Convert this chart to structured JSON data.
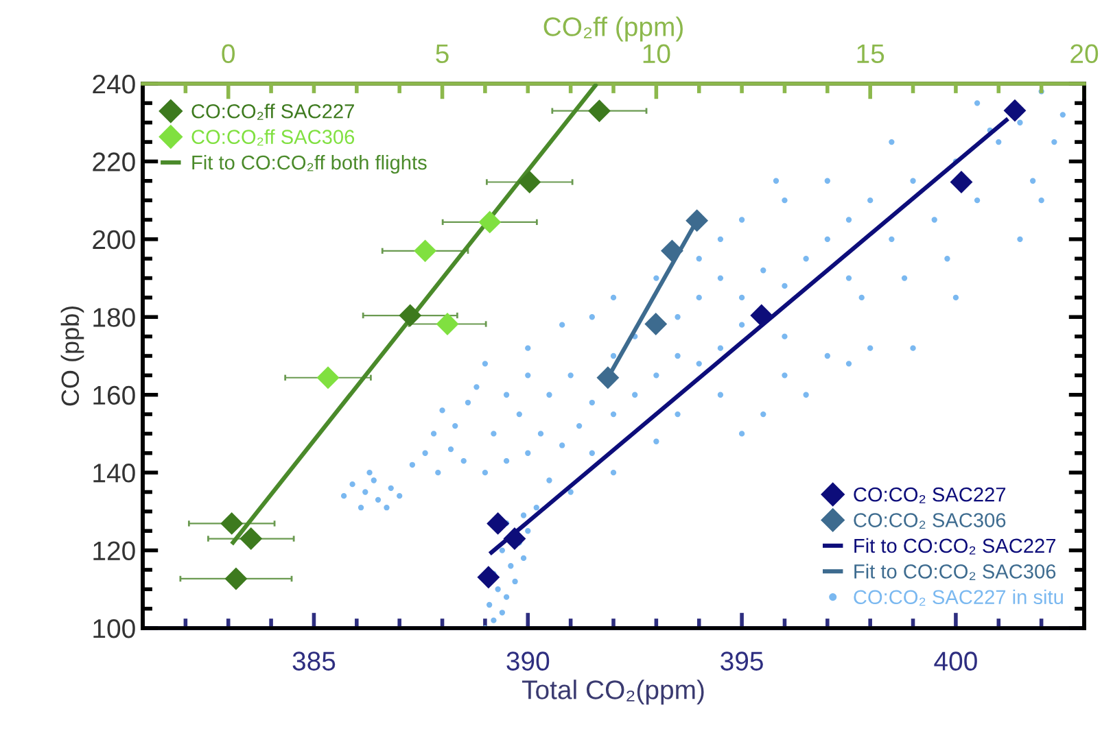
{
  "chart_data": {
    "type": "scatter",
    "xlabel": "Total CO₂(ppm)",
    "ylabel": "CO (ppb)",
    "x2label": "CO₂ff (ppm)",
    "xlim": [
      381,
      403
    ],
    "xticks": [
      {
        "value": 381,
        "label": null
      },
      {
        "value": 382,
        "label": null
      },
      {
        "value": 383,
        "label": null
      },
      {
        "value": 384,
        "label": null
      },
      385,
      {
        "value": 386,
        "label": null
      },
      {
        "value": 387,
        "label": null
      },
      {
        "value": 388,
        "label": null
      },
      {
        "value": 389,
        "label": null
      },
      390,
      {
        "value": 391,
        "label": null
      },
      {
        "value": 392,
        "label": null
      },
      {
        "value": 393,
        "label": null
      },
      {
        "value": 394,
        "label": null
      },
      395,
      {
        "value": 396,
        "label": null
      },
      {
        "value": 397,
        "label": null
      },
      {
        "value": 398,
        "label": null
      },
      {
        "value": 399,
        "label": null
      },
      400,
      {
        "value": 401,
        "label": null
      },
      {
        "value": 402,
        "label": null
      }
    ],
    "x2lim": [
      -2,
      20
    ],
    "x2ticks": [
      {
        "value": -1,
        "label": null
      },
      0,
      {
        "value": 1,
        "label": null
      },
      {
        "value": 2,
        "label": null
      },
      {
        "value": 3,
        "label": null
      },
      {
        "value": 4,
        "label": null
      },
      5,
      {
        "value": 6,
        "label": null
      },
      {
        "value": 7,
        "label": null
      },
      {
        "value": 8,
        "label": null
      },
      {
        "value": 9,
        "label": null
      },
      10,
      {
        "value": 11,
        "label": null
      },
      {
        "value": 12,
        "label": null
      },
      {
        "value": 13,
        "label": null
      },
      {
        "value": 14,
        "label": null
      },
      15,
      {
        "value": 16,
        "label": null
      },
      {
        "value": 17,
        "label": null
      },
      {
        "value": 18,
        "label": null
      },
      {
        "value": 19,
        "label": null
      },
      20
    ],
    "ylim": [
      100,
      240
    ],
    "yticks": [
      100,
      {
        "value": 105,
        "label": null
      },
      {
        "value": 110,
        "label": null
      },
      {
        "value": 115,
        "label": null
      },
      120,
      {
        "value": 125,
        "label": null
      },
      {
        "value": 130,
        "label": null
      },
      {
        "value": 135,
        "label": null
      },
      140,
      {
        "value": 145,
        "label": null
      },
      {
        "value": 150,
        "label": null
      },
      {
        "value": 155,
        "label": null
      },
      160,
      {
        "value": 165,
        "label": null
      },
      {
        "value": 170,
        "label": null
      },
      {
        "value": 175,
        "label": null
      },
      180,
      {
        "value": 185,
        "label": null
      },
      {
        "value": 190,
        "label": null
      },
      {
        "value": 195,
        "label": null
      },
      200,
      {
        "value": 205,
        "label": null
      },
      {
        "value": 210,
        "label": null
      },
      {
        "value": 215,
        "label": null
      },
      220,
      {
        "value": 225,
        "label": null
      },
      {
        "value": 230,
        "label": null
      },
      {
        "value": 235,
        "label": null
      },
      240
    ],
    "grid": false,
    "legend": [
      "top left",
      "bottom right"
    ],
    "series": [
      {
        "name": "CO:CO₂ SAC227 in situ",
        "marker": "circle",
        "color": "#7ab8f0",
        "x": [
          389.0,
          389.2,
          389.4,
          389.1,
          389.5,
          389.3,
          389.7,
          389.2,
          389.6,
          389.9,
          389.4,
          389.8,
          390.0,
          389.5,
          389.9,
          390.2,
          385.9,
          386.2,
          386.5,
          386.8,
          386.4,
          386.1,
          386.7,
          387.0,
          385.7,
          386.3,
          387.3,
          387.6,
          387.9,
          388.2,
          388.5,
          387.8,
          388.3,
          388.0,
          388.6,
          389.0,
          389.5,
          390.0,
          390.5,
          389.2,
          389.8,
          390.3,
          390.8,
          391.2,
          391.5,
          389.5,
          390.0,
          390.5,
          391.0,
          391.5,
          392.0,
          392.5,
          392.0,
          392.5,
          393.0,
          393.5,
          394.0,
          394.5,
          395.0,
          393.5,
          394.0,
          394.5,
          395.0,
          395.5,
          396.0,
          396.5,
          397.0,
          396.0,
          397.0,
          397.5,
          398.0,
          390.0,
          390.8,
          391.5,
          392.0,
          389.0,
          388.8,
          391.0,
          392.0,
          393.0,
          393.5,
          394.5,
          395.0,
          395.5,
          396.5,
          396.0,
          397.5,
          398.0,
          398.5,
          399.0,
          399.5,
          400.0,
          400.5,
          401.0,
          401.5,
          402.0,
          402.3,
          401.8,
          402.5,
          400.8,
          399.8,
          398.8,
          397.8,
          400.0,
          401.5,
          402.0,
          399.0,
          397.0,
          396.0,
          395.0,
          394.5,
          400.5,
          398.5,
          397.5,
          395.8,
          394.0,
          393.0
        ],
        "values": [
          100,
          102,
          104,
          106,
          108,
          110,
          112,
          114,
          116,
          118,
          120,
          122,
          125,
          127,
          129,
          131,
          137,
          135,
          133,
          136,
          138,
          131,
          131,
          134,
          134,
          140,
          142,
          145,
          140,
          146,
          143,
          150,
          152,
          156,
          158,
          140,
          143,
          145,
          138,
          150,
          155,
          150,
          147,
          152,
          145,
          160,
          165,
          160,
          165,
          158,
          155,
          160,
          170,
          175,
          165,
          170,
          168,
          172,
          178,
          180,
          185,
          190,
          185,
          192,
          188,
          195,
          200,
          175,
          170,
          168,
          172,
          172,
          178,
          180,
          185,
          168,
          162,
          135,
          140,
          148,
          155,
          160,
          150,
          155,
          160,
          165,
          205,
          210,
          200,
          215,
          205,
          220,
          210,
          225,
          230,
          238,
          225,
          215,
          232,
          228,
          195,
          190,
          185,
          185,
          200,
          210,
          172,
          215,
          210,
          205,
          200,
          235,
          225,
          190,
          215,
          195,
          190
        ]
      },
      {
        "name": "CO:CO₂ff SAC227",
        "marker": "diamond",
        "axis": "x2",
        "color": "#3d7a1e",
        "x": [
          8.67,
          7.04,
          4.25,
          0.08,
          0.53,
          0.18
        ],
        "values": [
          233,
          214.7,
          180.4,
          126.9,
          123.0,
          112.7
        ],
        "xerrors": [
          1.1,
          1.0,
          1.1,
          1.0,
          1.0,
          1.3
        ]
      },
      {
        "name": "CO:CO₂ff SAC306",
        "marker": "diamond",
        "axis": "x2",
        "color": "#80e040",
        "x": [
          6.11,
          4.6,
          5.12,
          2.33
        ],
        "values": [
          204.4,
          197.0,
          178.2,
          164.4
        ],
        "xerrors": [
          1.1,
          1.0,
          0.9,
          1.0
        ]
      },
      {
        "name": "Fit to CO:CO₂ff both flights",
        "type": "line",
        "marker": "none",
        "line_style": "solid",
        "axis": "x2",
        "color": "#4a8a2a",
        "x": [
          0.08,
          8.61
        ],
        "values": [
          121.6,
          240
        ]
      },
      {
        "name": "CO:CO₂ SAC227",
        "marker": "diamond",
        "color": "#0d0d7a",
        "x": [
          401.38,
          400.13,
          395.46,
          389.3,
          389.69,
          389.08
        ],
        "values": [
          233.1,
          214.7,
          180.4,
          126.9,
          123.0,
          113.1
        ]
      },
      {
        "name": "CO:CO₂ SAC306",
        "marker": "diamond",
        "color": "#3d6b8f",
        "x": [
          393.95,
          393.37,
          392.99,
          391.87
        ],
        "values": [
          204.8,
          197.0,
          178.2,
          164.4
        ]
      },
      {
        "name": "Fit to CO:CO₂ SAC227",
        "type": "line",
        "marker": "none",
        "line_style": "solid",
        "color": "#0d0d7a",
        "x": [
          389.11,
          401.22
        ],
        "values": [
          119.1,
          231.0
        ]
      },
      {
        "name": "Fit to CO:CO₂ SAC306",
        "type": "line",
        "marker": "none",
        "line_style": "solid",
        "color": "#3d6b8f",
        "x": [
          391.87,
          393.95
        ],
        "values": [
          164.4,
          204.8
        ]
      }
    ]
  }
}
